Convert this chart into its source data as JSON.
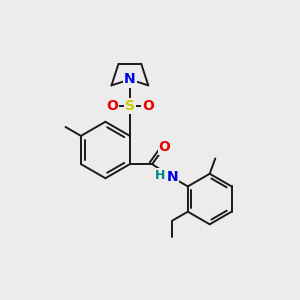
{
  "bg_color": "#ececec",
  "bond_color": "#1a1a1a",
  "bond_width": 1.4,
  "atom_colors": {
    "N": "#0000ee",
    "O": "#ee0000",
    "S": "#cccc00",
    "H": "#008888",
    "C": "#1a1a1a"
  },
  "font_size": 9,
  "xlim": [
    0,
    10
  ],
  "ylim": [
    0,
    10
  ]
}
